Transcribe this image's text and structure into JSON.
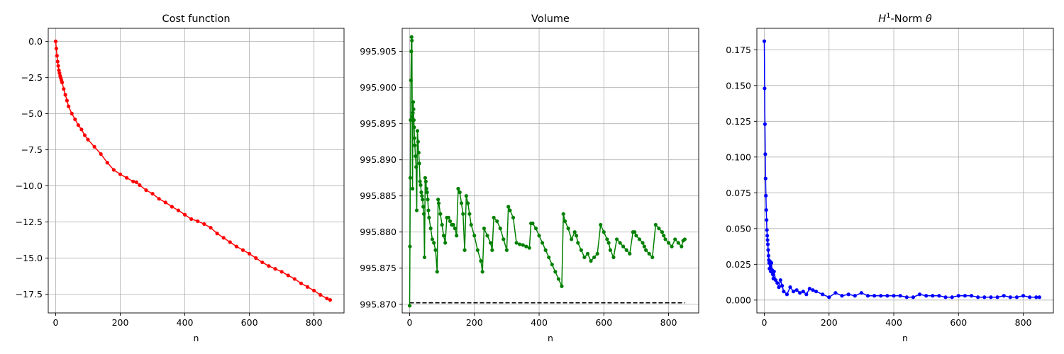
{
  "chart_data": [
    {
      "type": "line",
      "title": "Cost function",
      "xlabel": "n",
      "ylabel": "",
      "xlim": [
        -23,
        893
      ],
      "ylim": [
        -18.8,
        0.9
      ],
      "xticks": [
        0,
        200,
        400,
        600,
        800
      ],
      "xtick_labels": [
        "0",
        "200",
        "400",
        "600",
        "800"
      ],
      "yticks": [
        0.0,
        -2.5,
        -5.0,
        -7.5,
        -10.0,
        -12.5,
        -15.0,
        -17.5
      ],
      "ytick_labels": [
        "0.0",
        "−2.5",
        "−5.0",
        "−7.5",
        "−10.0",
        "−12.5",
        "−15.0",
        "−17.5"
      ],
      "grid": true,
      "color": "#ff0000",
      "marker": "dot",
      "series": [
        {
          "x": [
            0,
            2,
            4,
            6,
            8,
            10,
            12,
            14,
            16,
            18,
            20,
            25,
            30,
            35,
            40,
            50,
            60,
            70,
            80,
            90,
            100,
            120,
            140,
            160,
            180,
            200,
            220,
            240,
            250,
            260,
            280,
            300,
            320,
            340,
            360,
            380,
            400,
            420,
            440,
            460,
            480,
            500,
            520,
            540,
            560,
            580,
            600,
            620,
            640,
            660,
            680,
            700,
            720,
            740,
            760,
            780,
            800,
            820,
            840,
            850
          ],
          "y": [
            0.0,
            -0.5,
            -1.0,
            -1.4,
            -1.7,
            -2.0,
            -2.2,
            -2.4,
            -2.55,
            -2.7,
            -2.85,
            -3.3,
            -3.7,
            -4.1,
            -4.5,
            -5.0,
            -5.4,
            -5.8,
            -6.1,
            -6.5,
            -6.8,
            -7.3,
            -7.8,
            -8.4,
            -8.9,
            -9.2,
            -9.45,
            -9.7,
            -9.75,
            -9.95,
            -10.3,
            -10.55,
            -10.9,
            -11.15,
            -11.45,
            -11.7,
            -12.0,
            -12.3,
            -12.45,
            -12.65,
            -12.9,
            -13.3,
            -13.6,
            -13.9,
            -14.2,
            -14.45,
            -14.7,
            -15.0,
            -15.3,
            -15.55,
            -15.75,
            -15.95,
            -16.2,
            -16.45,
            -16.75,
            -17.0,
            -17.25,
            -17.55,
            -17.8,
            -17.9
          ]
        }
      ]
    },
    {
      "type": "line",
      "title": "Volume",
      "xlabel": "n",
      "ylabel": "",
      "xlim": [
        -23,
        893
      ],
      "ylim": [
        995.8688,
        995.9082
      ],
      "xticks": [
        0,
        200,
        400,
        600,
        800
      ],
      "xtick_labels": [
        "0",
        "200",
        "400",
        "600",
        "800"
      ],
      "yticks": [
        995.87,
        995.875,
        995.88,
        995.885,
        995.89,
        995.895,
        995.9,
        995.905
      ],
      "ytick_labels": [
        "995.870",
        "995.875",
        "995.880",
        "995.885",
        "995.890",
        "995.895",
        "995.900",
        "995.905"
      ],
      "grid": true,
      "color": "#008000",
      "marker": "dot",
      "reference": {
        "y": 995.8702,
        "x": [
          0,
          850
        ],
        "color": "#000000",
        "style": "dashed"
      },
      "series": [
        {
          "x": [
            0,
            1,
            2,
            3,
            4,
            5,
            6,
            7,
            8,
            9,
            10,
            11,
            12,
            13,
            14,
            15,
            16,
            18,
            20,
            22,
            24,
            26,
            28,
            30,
            32,
            34,
            36,
            38,
            40,
            42,
            44,
            46,
            48,
            50,
            52,
            54,
            56,
            58,
            60,
            65,
            70,
            75,
            80,
            85,
            88,
            90,
            95,
            100,
            105,
            110,
            115,
            120,
            125,
            130,
            135,
            140,
            145,
            150,
            155,
            160,
            165,
            170,
            175,
            180,
            185,
            190,
            200,
            210,
            220,
            225,
            230,
            240,
            250,
            255,
            260,
            270,
            280,
            290,
            300,
            305,
            310,
            320,
            330,
            340,
            350,
            360,
            370,
            375,
            380,
            390,
            400,
            410,
            420,
            430,
            440,
            450,
            460,
            470,
            475,
            480,
            490,
            500,
            510,
            515,
            520,
            530,
            540,
            550,
            560,
            570,
            580,
            590,
            600,
            610,
            615,
            620,
            630,
            640,
            650,
            660,
            670,
            680,
            690,
            695,
            700,
            710,
            720,
            725,
            730,
            740,
            750,
            760,
            770,
            780,
            785,
            790,
            800,
            810,
            820,
            830,
            840,
            845,
            850
          ],
          "y": [
            995.8698,
            995.878,
            995.8875,
            995.8955,
            995.901,
            995.905,
            995.907,
            995.9065,
            995.896,
            995.886,
            995.8965,
            995.898,
            995.897,
            995.8955,
            995.8945,
            995.893,
            995.892,
            995.8905,
            995.889,
            995.883,
            995.894,
            995.8925,
            995.891,
            995.8895,
            995.887,
            995.8865,
            995.8855,
            995.885,
            995.8845,
            995.8835,
            995.8825,
            995.8765,
            995.8875,
            995.887,
            995.886,
            995.8855,
            995.8845,
            995.883,
            995.882,
            995.8805,
            995.879,
            995.8785,
            995.8775,
            995.8745,
            995.8845,
            995.884,
            995.8825,
            995.881,
            995.8795,
            995.8785,
            995.882,
            995.882,
            995.8815,
            995.881,
            995.881,
            995.8805,
            995.8795,
            995.886,
            995.8855,
            995.884,
            995.8825,
            995.8775,
            995.885,
            995.884,
            995.8825,
            995.881,
            995.8795,
            995.8775,
            995.876,
            995.8745,
            995.8805,
            995.8795,
            995.8785,
            995.8775,
            995.882,
            995.8815,
            995.8805,
            995.879,
            995.8775,
            995.8835,
            995.883,
            995.882,
            995.8785,
            995.8783,
            995.8782,
            995.878,
            995.8778,
            995.8812,
            995.8812,
            995.8805,
            995.8795,
            995.8785,
            995.8775,
            995.8765,
            995.8755,
            995.8745,
            995.8735,
            995.8725,
            995.8825,
            995.8815,
            995.8805,
            995.879,
            995.88,
            995.8795,
            995.8785,
            995.8775,
            995.8765,
            995.877,
            995.876,
            995.8765,
            995.877,
            995.881,
            995.88,
            995.879,
            995.8785,
            995.8775,
            995.8765,
            995.879,
            995.8785,
            995.878,
            995.8775,
            995.877,
            995.88,
            995.88,
            995.8795,
            995.879,
            995.8785,
            995.878,
            995.8775,
            995.877,
            995.8765,
            995.881,
            995.8805,
            995.88,
            995.8795,
            995.879,
            995.8785,
            995.878,
            995.879,
            995.8785,
            995.878,
            995.8788,
            995.879
          ]
        }
      ]
    },
    {
      "type": "line",
      "title": "H1-Norm θ",
      "xlabel": "n",
      "ylabel": "",
      "xlim": [
        -23,
        893
      ],
      "ylim": [
        -0.009,
        0.19
      ],
      "xticks": [
        0,
        200,
        400,
        600,
        800
      ],
      "xtick_labels": [
        "0",
        "200",
        "400",
        "600",
        "800"
      ],
      "yticks": [
        0.0,
        0.025,
        0.05,
        0.075,
        0.1,
        0.125,
        0.15,
        0.175
      ],
      "ytick_labels": [
        "0.000",
        "0.025",
        "0.050",
        "0.075",
        "0.100",
        "0.125",
        "0.150",
        "0.175"
      ],
      "grid": true,
      "color": "#0000ff",
      "marker": "dot",
      "series": [
        {
          "x": [
            0,
            1,
            2,
            3,
            4,
            5,
            6,
            7,
            8,
            9,
            10,
            11,
            12,
            13,
            14,
            15,
            16,
            18,
            20,
            22,
            24,
            26,
            28,
            30,
            35,
            40,
            45,
            50,
            55,
            60,
            70,
            80,
            90,
            100,
            110,
            120,
            130,
            140,
            150,
            160,
            180,
            200,
            220,
            240,
            260,
            280,
            300,
            320,
            340,
            360,
            380,
            400,
            420,
            440,
            460,
            480,
            500,
            520,
            540,
            560,
            580,
            600,
            620,
            640,
            660,
            680,
            700,
            720,
            740,
            760,
            780,
            800,
            820,
            840,
            850
          ],
          "y": [
            0.181,
            0.148,
            0.123,
            0.102,
            0.085,
            0.073,
            0.063,
            0.056,
            0.049,
            0.045,
            0.042,
            0.039,
            0.035,
            0.031,
            0.028,
            0.026,
            0.022,
            0.027,
            0.02,
            0.026,
            0.021,
            0.018,
            0.015,
            0.02,
            0.014,
            0.012,
            0.009,
            0.014,
            0.01,
            0.006,
            0.004,
            0.009,
            0.006,
            0.007,
            0.005,
            0.006,
            0.004,
            0.008,
            0.007,
            0.006,
            0.004,
            0.002,
            0.005,
            0.003,
            0.004,
            0.003,
            0.005,
            0.003,
            0.003,
            0.003,
            0.003,
            0.003,
            0.003,
            0.002,
            0.002,
            0.004,
            0.003,
            0.003,
            0.003,
            0.002,
            0.002,
            0.003,
            0.003,
            0.003,
            0.002,
            0.002,
            0.002,
            0.002,
            0.003,
            0.002,
            0.002,
            0.003,
            0.002,
            0.002,
            0.002
          ]
        }
      ]
    }
  ]
}
